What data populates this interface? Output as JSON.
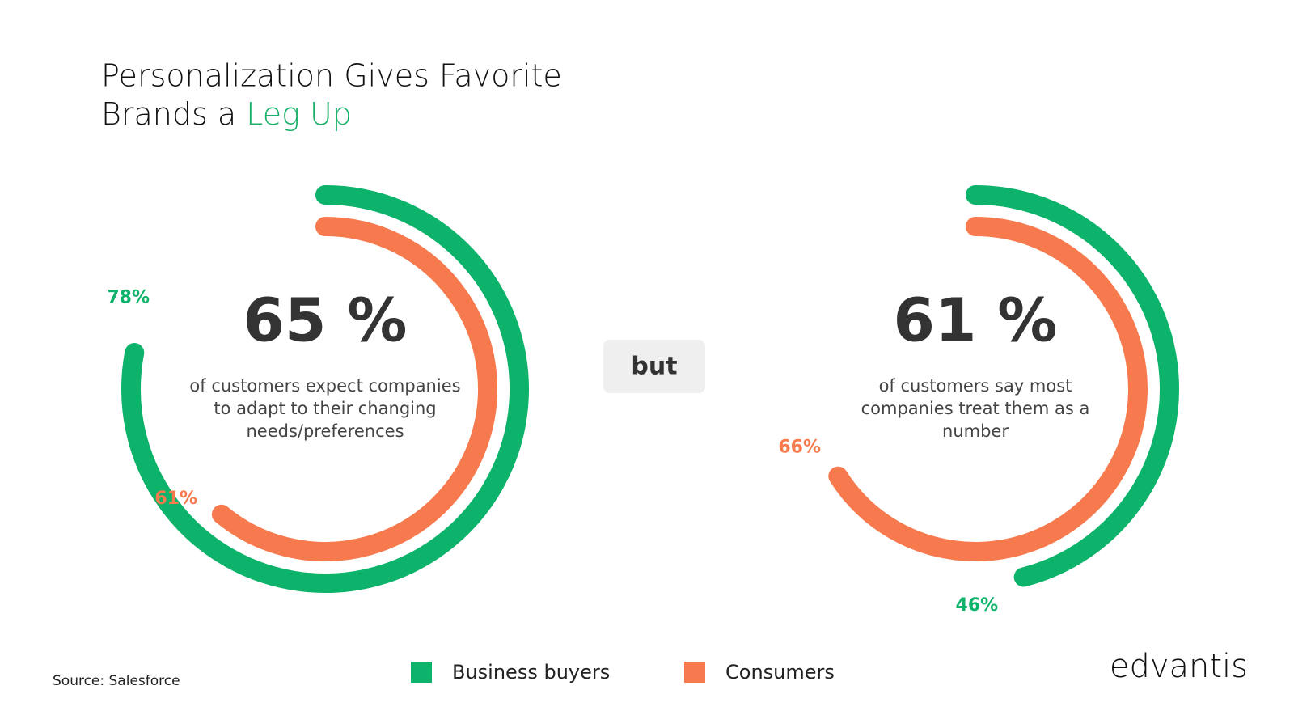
{
  "header": {
    "title_line1": "Personalization Gives Favorite",
    "title_line2": "Brands a",
    "title_highlight": "Leg Up"
  },
  "connector": "but",
  "source": "Source: Salesforce",
  "logo": "edvantis",
  "chart_data": [
    {
      "type": "radial",
      "headline": "65 %",
      "caption_lines": [
        "of customers expect companies",
        "to adapt to their changing",
        "needs/preferences"
      ],
      "ylim": [
        0,
        100
      ],
      "series": [
        {
          "name": "Business buyers",
          "color": "#0db36b",
          "values": [
            78
          ],
          "value_labels": [
            "78%"
          ]
        },
        {
          "name": "Consumers",
          "color": "#f77a4f",
          "values": [
            61
          ],
          "value_labels": [
            "61%"
          ]
        }
      ]
    },
    {
      "type": "radial",
      "headline": "61 %",
      "caption_lines": [
        "of customers say most",
        "companies treat them as a",
        "number"
      ],
      "ylim": [
        0,
        100
      ],
      "series": [
        {
          "name": "Business buyers",
          "color": "#0db36b",
          "values": [
            46
          ],
          "value_labels": [
            "46%"
          ]
        },
        {
          "name": "Consumers",
          "color": "#f77a4f",
          "values": [
            66
          ],
          "value_labels": [
            "66%"
          ]
        }
      ]
    }
  ]
}
